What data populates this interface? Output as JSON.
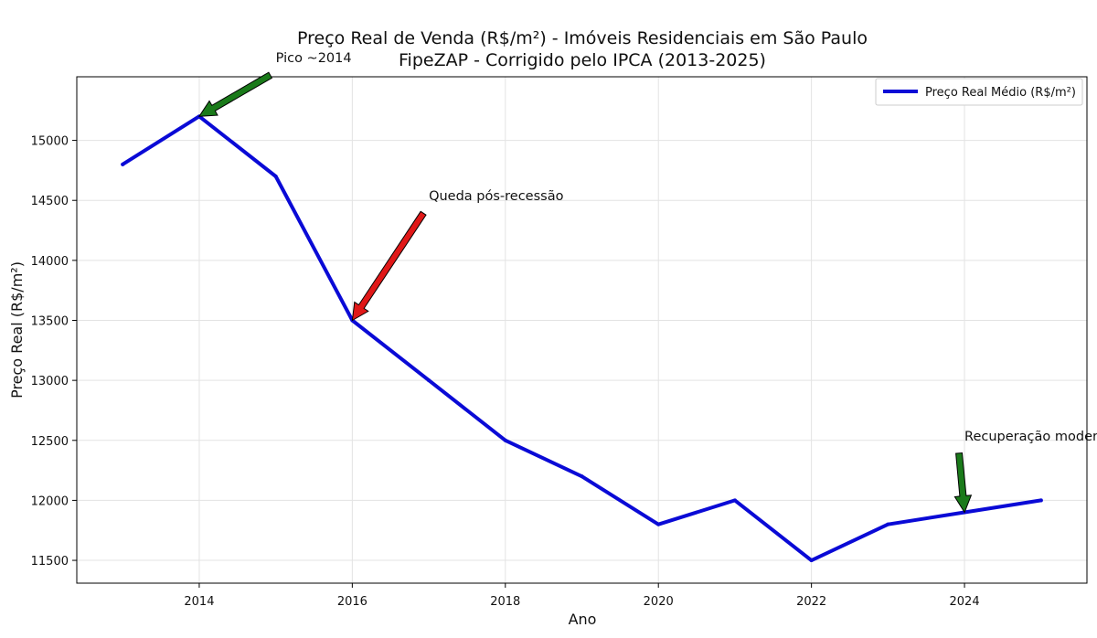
{
  "chart_data": {
    "type": "line",
    "title": "Preço Real de Venda (R$/m²) - Imóveis Residenciais em São Paulo",
    "subtitle": "FipeZAP - Corrigido pelo IPCA (2013-2025)",
    "xlabel": "Ano",
    "ylabel": "Preço Real (R$/m²)",
    "xlim": [
      2012.4,
      2025.6
    ],
    "ylim": [
      11310,
      15530
    ],
    "x_ticks": [
      2014,
      2016,
      2018,
      2020,
      2022,
      2024
    ],
    "y_ticks": [
      11500,
      12000,
      12500,
      13000,
      13500,
      14000,
      14500,
      15000
    ],
    "grid": true,
    "legend_position": "top-right",
    "series": [
      {
        "name": "Preço Real Médio (R$/m²)",
        "color": "#0a0ad6",
        "x": [
          2013,
          2014,
          2015,
          2016,
          2017,
          2018,
          2019,
          2020,
          2021,
          2022,
          2023,
          2024,
          2025
        ],
        "y": [
          14800,
          15200,
          14700,
          13500,
          13000,
          12500,
          12200,
          11800,
          12000,
          11500,
          11800,
          11900,
          12000
        ]
      }
    ],
    "annotations": [
      {
        "text": "Pico ~2014",
        "point": [
          2014,
          15200
        ],
        "text_at": [
          2015,
          15650
        ],
        "arrow_color": "#1a7a1a"
      },
      {
        "text": "Queda pós-recessão",
        "point": [
          2016,
          13500
        ],
        "text_at": [
          2017,
          14500
        ],
        "arrow_color": "#e01818"
      },
      {
        "text": "Recuperação moderada",
        "point": [
          2024,
          11900
        ],
        "text_at": [
          2024,
          12500
        ],
        "arrow_color": "#1a7a1a"
      }
    ]
  }
}
